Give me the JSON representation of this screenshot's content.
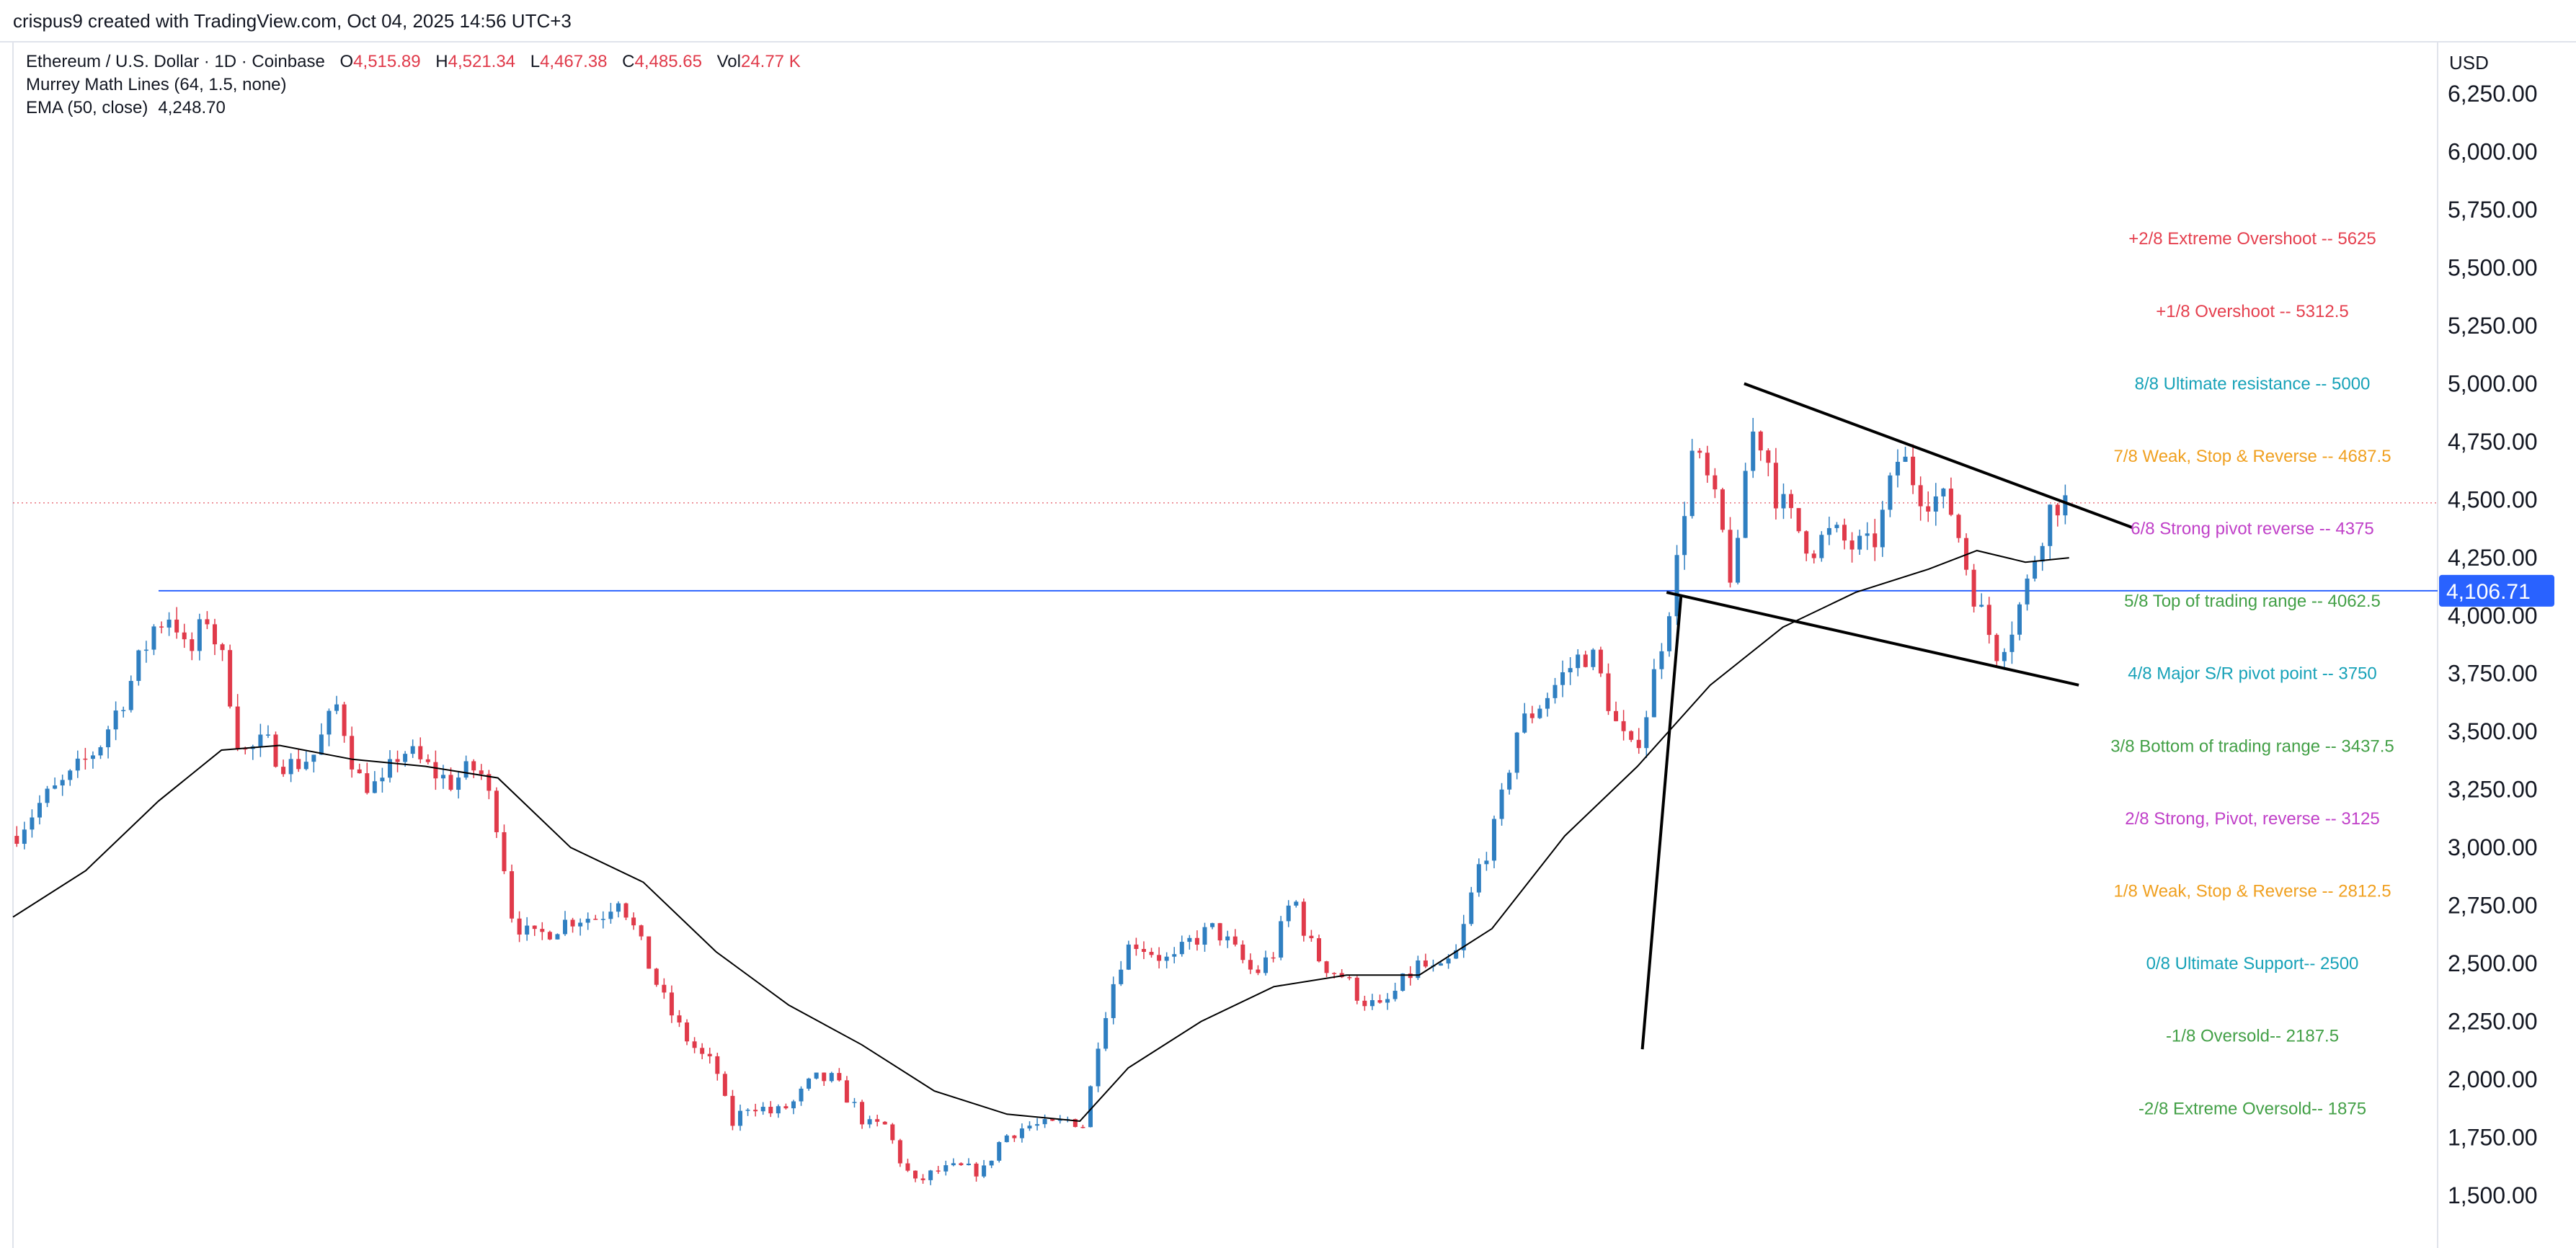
{
  "header": {
    "attribution": "crispus9 created with TradingView.com, Oct 04, 2025 14:56 UTC+3"
  },
  "legend": {
    "symbol": "Ethereum / U.S. Dollar · 1D · Coinbase",
    "open_label": "O",
    "open": "4,515.89",
    "high_label": "H",
    "high": "4,521.34",
    "low_label": "L",
    "low": "4,467.38",
    "close_label": "C",
    "close": "4,485.65",
    "vol_label": "Vol",
    "vol": "24.77 K",
    "indicator_murrey": "Murrey Math Lines (64, 1.5, none)",
    "indicator_ema": "EMA (50, close)",
    "ema_value": "4,248.70"
  },
  "axis": {
    "currency": "USD",
    "price_tag": "4,106.71"
  },
  "colors": {
    "up": "#2f7fc1",
    "down": "#e03a4a",
    "ema": "#000000",
    "horizontal_line": "#2962ff",
    "price_tag_bg": "#2962ff",
    "trendline": "#000000"
  },
  "chart_data": {
    "type": "candlestick",
    "ylim": [
      1250,
      6500
    ],
    "yticks": [
      {
        "value": 1500,
        "label": "1,500.00"
      },
      {
        "value": 1750,
        "label": "1,750.00"
      },
      {
        "value": 2000,
        "label": "2,000.00"
      },
      {
        "value": 2250,
        "label": "2,250.00"
      },
      {
        "value": 2500,
        "label": "2,500.00"
      },
      {
        "value": 2750,
        "label": "2,750.00"
      },
      {
        "value": 3000,
        "label": "3,000.00"
      },
      {
        "value": 3250,
        "label": "3,250.00"
      },
      {
        "value": 3500,
        "label": "3,500.00"
      },
      {
        "value": 3750,
        "label": "3,750.00"
      },
      {
        "value": 4000,
        "label": "4,000.00"
      },
      {
        "value": 4250,
        "label": "4,250.00"
      },
      {
        "value": 4500,
        "label": "4,500.00"
      },
      {
        "value": 4750,
        "label": "4,750.00"
      },
      {
        "value": 5000,
        "label": "5,000.00"
      },
      {
        "value": 5250,
        "label": "5,250.00"
      },
      {
        "value": 5500,
        "label": "5,500.00"
      },
      {
        "value": 5750,
        "label": "5,750.00"
      },
      {
        "value": 6000,
        "label": "6,000.00"
      },
      {
        "value": 6250,
        "label": "6,250.00"
      }
    ],
    "horizontal_line": 4106.71,
    "current_price_dotted": 4485.65,
    "murrey_lines": [
      {
        "label": "+2/8 Extreme Overshoot --  5625",
        "value": 5625,
        "color": "#e5404f"
      },
      {
        "label": "+1/8 Overshoot --  5312.5",
        "value": 5312.5,
        "color": "#e5404f"
      },
      {
        "label": "8/8 Ultimate resistance --  5000",
        "value": 5000,
        "color": "#17a2b8"
      },
      {
        "label": "7/8 Weak, Stop & Reverse --  4687.5",
        "value": 4687.5,
        "color": "#f0a020"
      },
      {
        "label": "6/8 Strong pivot reverse --  4375",
        "value": 4375,
        "color": "#c040c8"
      },
      {
        "label": "5/8 Top of trading range --  4062.5",
        "value": 4062.5,
        "color": "#43a047"
      },
      {
        "label": "4/8 Major S/R pivot point --  3750",
        "value": 3750,
        "color": "#17a2b8"
      },
      {
        "label": "3/8 Bottom of trading range --  3437.5",
        "value": 3437.5,
        "color": "#43a047"
      },
      {
        "label": "2/8 Strong, Pivot, reverse --  3125",
        "value": 3125,
        "color": "#c040c8"
      },
      {
        "label": "1/8 Weak, Stop & Reverse --  2812.5",
        "value": 2812.5,
        "color": "#f0a020"
      },
      {
        "label": "0/8 Ultimate Support--  2500",
        "value": 2500,
        "color": "#17a2b8"
      },
      {
        "label": "-1/8 Oversold--  2187.5",
        "value": 2187.5,
        "color": "#43a047"
      },
      {
        "label": "-2/8 Extreme Oversold--  1875",
        "value": 1875,
        "color": "#43a047"
      }
    ],
    "trendlines": [
      {
        "name": "flag-upper",
        "from": [
          0.714,
          5000
        ],
        "to": [
          0.874,
          4380
        ]
      },
      {
        "name": "flag-lower",
        "from": [
          0.682,
          4100
        ],
        "to": [
          0.852,
          3700
        ]
      },
      {
        "name": "flagpole",
        "from": [
          0.672,
          2130
        ],
        "to": [
          0.688,
          4090
        ]
      }
    ],
    "price_path": [
      [
        0.0,
        3050
      ],
      [
        0.012,
        3200
      ],
      [
        0.024,
        3300
      ],
      [
        0.036,
        3450
      ],
      [
        0.048,
        3700
      ],
      [
        0.058,
        3950
      ],
      [
        0.066,
        4020
      ],
      [
        0.072,
        3800
      ],
      [
        0.08,
        4000
      ],
      [
        0.088,
        3750
      ],
      [
        0.094,
        3400
      ],
      [
        0.104,
        3450
      ],
      [
        0.114,
        3350
      ],
      [
        0.124,
        3400
      ],
      [
        0.134,
        3620
      ],
      [
        0.142,
        3300
      ],
      [
        0.152,
        3250
      ],
      [
        0.16,
        3430
      ],
      [
        0.17,
        3350
      ],
      [
        0.18,
        3280
      ],
      [
        0.192,
        3350
      ],
      [
        0.2,
        3100
      ],
      [
        0.206,
        2700
      ],
      [
        0.214,
        2600
      ],
      [
        0.222,
        2650
      ],
      [
        0.232,
        2700
      ],
      [
        0.242,
        2700
      ],
      [
        0.25,
        2800
      ],
      [
        0.256,
        2650
      ],
      [
        0.262,
        2500
      ],
      [
        0.268,
        2350
      ],
      [
        0.276,
        2200
      ],
      [
        0.284,
        2100
      ],
      [
        0.29,
        2050
      ],
      [
        0.296,
        1800
      ],
      [
        0.304,
        1900
      ],
      [
        0.314,
        1850
      ],
      [
        0.322,
        1900
      ],
      [
        0.33,
        2000
      ],
      [
        0.338,
        2000
      ],
      [
        0.346,
        1900
      ],
      [
        0.352,
        1800
      ],
      [
        0.36,
        1800
      ],
      [
        0.366,
        1650
      ],
      [
        0.372,
        1550
      ],
      [
        0.38,
        1600
      ],
      [
        0.39,
        1620
      ],
      [
        0.4,
        1600
      ],
      [
        0.408,
        1750
      ],
      [
        0.418,
        1800
      ],
      [
        0.428,
        1800
      ],
      [
        0.436,
        1830
      ],
      [
        0.442,
        1800
      ],
      [
        0.448,
        2200
      ],
      [
        0.456,
        2500
      ],
      [
        0.462,
        2600
      ],
      [
        0.47,
        2550
      ],
      [
        0.478,
        2500
      ],
      [
        0.486,
        2600
      ],
      [
        0.496,
        2650
      ],
      [
        0.504,
        2550
      ],
      [
        0.512,
        2450
      ],
      [
        0.52,
        2550
      ],
      [
        0.528,
        2800
      ],
      [
        0.534,
        2600
      ],
      [
        0.54,
        2500
      ],
      [
        0.548,
        2450
      ],
      [
        0.556,
        2350
      ],
      [
        0.564,
        2300
      ],
      [
        0.572,
        2400
      ],
      [
        0.58,
        2500
      ],
      [
        0.588,
        2450
      ],
      [
        0.596,
        2550
      ],
      [
        0.604,
        2900
      ],
      [
        0.612,
        3100
      ],
      [
        0.62,
        3500
      ],
      [
        0.628,
        3600
      ],
      [
        0.636,
        3700
      ],
      [
        0.644,
        3800
      ],
      [
        0.65,
        3850
      ],
      [
        0.656,
        3700
      ],
      [
        0.662,
        3500
      ],
      [
        0.668,
        3400
      ],
      [
        0.674,
        3600
      ],
      [
        0.68,
        3900
      ],
      [
        0.686,
        4200
      ],
      [
        0.692,
        4700
      ],
      [
        0.698,
        4600
      ],
      [
        0.704,
        4400
      ],
      [
        0.71,
        4100
      ],
      [
        0.716,
        4800
      ],
      [
        0.722,
        4750
      ],
      [
        0.728,
        4500
      ],
      [
        0.734,
        4400
      ],
      [
        0.742,
        4300
      ],
      [
        0.75,
        4350
      ],
      [
        0.758,
        4300
      ],
      [
        0.766,
        4280
      ],
      [
        0.772,
        4450
      ],
      [
        0.778,
        4700
      ],
      [
        0.786,
        4550
      ],
      [
        0.794,
        4500
      ],
      [
        0.8,
        4450
      ],
      [
        0.806,
        4200
      ],
      [
        0.812,
        4000
      ],
      [
        0.818,
        3850
      ],
      [
        0.824,
        3950
      ],
      [
        0.83,
        4100
      ],
      [
        0.836,
        4350
      ],
      [
        0.842,
        4500
      ],
      [
        0.848,
        4486
      ]
    ],
    "ema_path": [
      [
        0.0,
        2700
      ],
      [
        0.03,
        2900
      ],
      [
        0.06,
        3200
      ],
      [
        0.086,
        3420
      ],
      [
        0.11,
        3440
      ],
      [
        0.14,
        3380
      ],
      [
        0.17,
        3350
      ],
      [
        0.2,
        3300
      ],
      [
        0.23,
        3000
      ],
      [
        0.26,
        2850
      ],
      [
        0.29,
        2550
      ],
      [
        0.32,
        2320
      ],
      [
        0.35,
        2150
      ],
      [
        0.38,
        1950
      ],
      [
        0.41,
        1850
      ],
      [
        0.44,
        1820
      ],
      [
        0.46,
        2050
      ],
      [
        0.49,
        2250
      ],
      [
        0.52,
        2400
      ],
      [
        0.55,
        2450
      ],
      [
        0.58,
        2450
      ],
      [
        0.61,
        2650
      ],
      [
        0.64,
        3050
      ],
      [
        0.67,
        3350
      ],
      [
        0.7,
        3700
      ],
      [
        0.73,
        3950
      ],
      [
        0.76,
        4100
      ],
      [
        0.79,
        4200
      ],
      [
        0.81,
        4280
      ],
      [
        0.83,
        4230
      ],
      [
        0.848,
        4249
      ]
    ]
  }
}
